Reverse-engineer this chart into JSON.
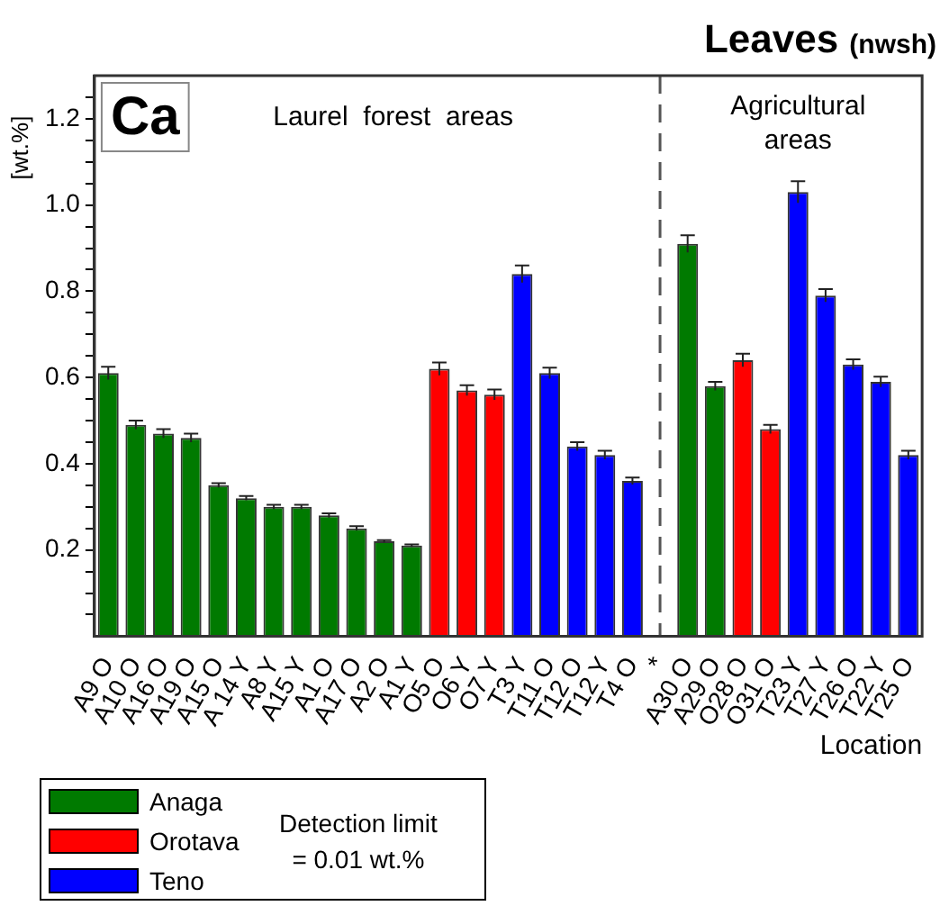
{
  "chart_data": {
    "type": "bar",
    "title": "Leaves (nwsh)",
    "xlabel": "Location",
    "ylabel": "[wt.%]",
    "categories": [
      "A9 O",
      "A10 O",
      "A16 O",
      "A19 O",
      "A15 O",
      "A 14 Y",
      "A8 Y",
      "A15 Y",
      "A1 O",
      "A17 O",
      "A2 O",
      "A1 Y",
      "O5 O",
      "O6 Y",
      "O7 Y",
      "T3 Y",
      "T11 O",
      "T12 O",
      "T12 Y",
      "T4 O",
      "*",
      "A30 O",
      "A29 O",
      "O28 O",
      "O31 O",
      "T23 Y",
      "T27 Y",
      "T26 O",
      "T22 Y",
      "T25 O"
    ],
    "series": [
      {
        "name": "Anaga",
        "color": "#007a00",
        "values": [
          0.61,
          0.49,
          0.47,
          0.46,
          0.35,
          0.32,
          0.3,
          0.3,
          0.28,
          0.25,
          0.22,
          0.21,
          null,
          null,
          null,
          null,
          null,
          null,
          null,
          null,
          null,
          0.91,
          0.58,
          null,
          null,
          null,
          null,
          null,
          null,
          null
        ],
        "errors": [
          0.015,
          0.01,
          0.01,
          0.01,
          0.005,
          0.005,
          0.005,
          0.005,
          0.005,
          0.005,
          0.003,
          0.003,
          null,
          null,
          null,
          null,
          null,
          null,
          null,
          null,
          null,
          0.02,
          0.01,
          null,
          null,
          null,
          null,
          null,
          null,
          null
        ]
      },
      {
        "name": "Orotava",
        "color": "#ff0000",
        "values": [
          null,
          null,
          null,
          null,
          null,
          null,
          null,
          null,
          null,
          null,
          null,
          null,
          0.62,
          0.57,
          0.56,
          null,
          null,
          null,
          null,
          null,
          null,
          null,
          null,
          0.64,
          0.48,
          null,
          null,
          null,
          null,
          null
        ],
        "errors": [
          null,
          null,
          null,
          null,
          null,
          null,
          null,
          null,
          null,
          null,
          null,
          null,
          0.015,
          0.012,
          0.012,
          null,
          null,
          null,
          null,
          null,
          null,
          null,
          null,
          0.015,
          0.01,
          null,
          null,
          null,
          null,
          null
        ]
      },
      {
        "name": "Teno",
        "color": "#0000ff",
        "values": [
          null,
          null,
          null,
          null,
          null,
          null,
          null,
          null,
          null,
          null,
          null,
          null,
          null,
          null,
          null,
          0.84,
          0.61,
          0.44,
          0.42,
          0.36,
          null,
          null,
          null,
          null,
          null,
          1.03,
          0.79,
          0.63,
          0.59,
          0.42
        ],
        "errors": [
          null,
          null,
          null,
          null,
          null,
          null,
          null,
          null,
          null,
          null,
          null,
          null,
          null,
          null,
          null,
          0.02,
          0.013,
          0.01,
          0.01,
          0.008,
          null,
          null,
          null,
          null,
          null,
          0.025,
          0.015,
          0.012,
          0.012,
          0.01
        ]
      }
    ],
    "ylim": [
      0,
      1.3
    ],
    "yticks": [
      {
        "value": 0.05,
        "label": null
      },
      {
        "value": 0.1,
        "label": null
      },
      {
        "value": 0.15,
        "label": null
      },
      0.2,
      {
        "value": 0.25,
        "label": null
      },
      {
        "value": 0.3,
        "label": null
      },
      {
        "value": 0.35,
        "label": null
      },
      0.4,
      {
        "value": 0.45,
        "label": null
      },
      {
        "value": 0.5,
        "label": null
      },
      {
        "value": 0.55,
        "label": null
      },
      0.6,
      {
        "value": 0.65,
        "label": null
      },
      {
        "value": 0.7,
        "label": null
      },
      {
        "value": 0.75,
        "label": null
      },
      0.8,
      {
        "value": 0.85,
        "label": null
      },
      {
        "value": 0.9,
        "label": null
      },
      {
        "value": 0.95,
        "label": null
      },
      {
        "value": 1,
        "label": "1.0"
      },
      {
        "value": 1.05,
        "label": null
      },
      {
        "value": 1.1,
        "label": null
      },
      {
        "value": 1.15,
        "label": null
      },
      1.2,
      {
        "value": 1.25,
        "label": null
      }
    ],
    "ref_lines": [
      {
        "axis": "x",
        "value": "*",
        "color": "#555555",
        "line_style": "dashed"
      }
    ],
    "annotations": [
      "Ca",
      "Laurel  forest  areas",
      "Agricultural areas",
      "Detection limit = 0.01 wt.%"
    ],
    "legend": "bottom left",
    "grid": false
  }
}
